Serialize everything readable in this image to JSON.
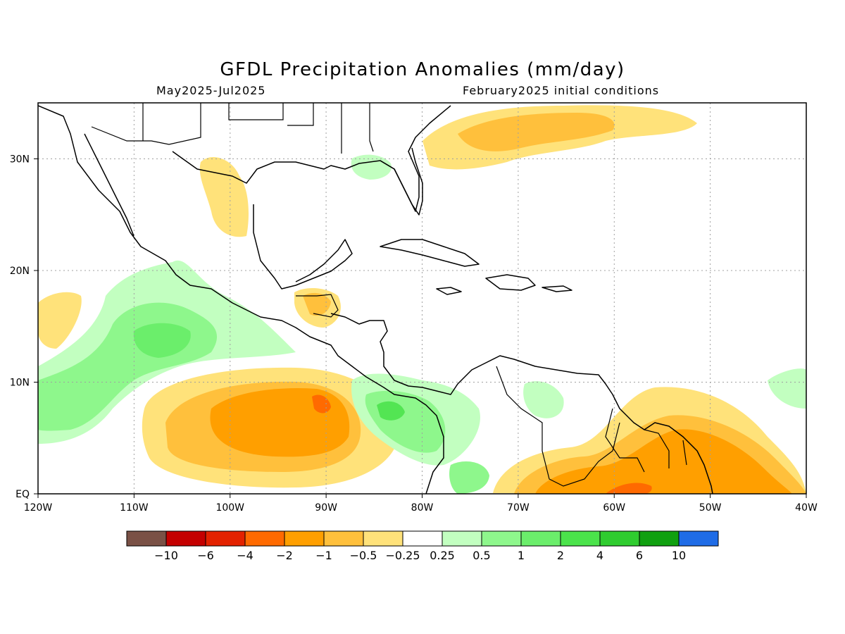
{
  "title": "GFDL Precipitation Anomalies (mm/day)",
  "period": "May2025-Jul2025",
  "initial_conditions": "February2025 initial conditions",
  "map": {
    "lon_ticks": [
      "120W",
      "110W",
      "100W",
      "90W",
      "80W",
      "70W",
      "60W",
      "50W",
      "40W"
    ],
    "lat_ticks": [
      "EQ",
      "10N",
      "20N",
      "30N"
    ],
    "land_colors": {
      "dry": "#ffe27a",
      "drier": "#ffc03c",
      "driest": "#ff9f00",
      "red": "#ff6a00",
      "wet": "#c2ffc0",
      "wetter": "#8ef78c",
      "wettest": "#53e553"
    }
  },
  "colorbar": {
    "colors": [
      "#7a5146",
      "#c40000",
      "#e32200",
      "#ff6a00",
      "#ff9f00",
      "#ffc03c",
      "#ffe27a",
      "#ffffff",
      "#c2ffc0",
      "#8ef78c",
      "#6bee6b",
      "#4be34b",
      "#2fcc2f",
      "#10a010",
      "#1f6ce6"
    ],
    "labels": [
      "−10",
      "−6",
      "−4",
      "−2",
      "−1",
      "−0.5",
      "−0.25",
      "0.25",
      "0.5",
      "1",
      "2",
      "4",
      "6",
      "10"
    ]
  }
}
